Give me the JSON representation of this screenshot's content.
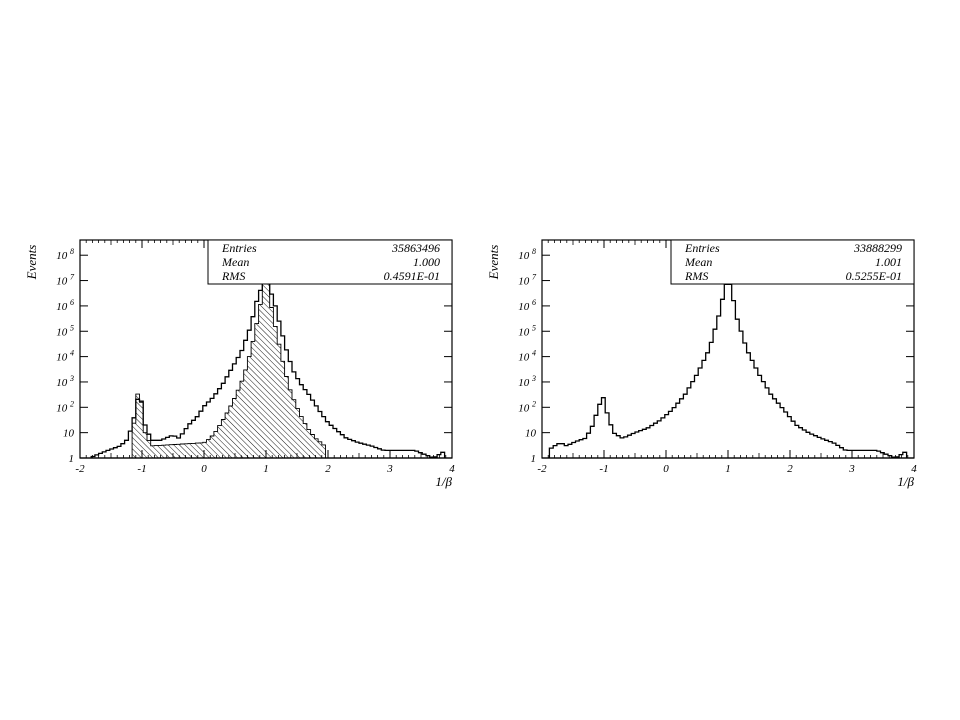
{
  "chart_data": [
    {
      "type": "histogram",
      "xlabel": "1/β",
      "ylabel": "Events",
      "xlim": [
        -2,
        4
      ],
      "ylim_log10": [
        0,
        8.6
      ],
      "log_y": true,
      "xticks": [
        "-2",
        "-1",
        "0",
        "1",
        "2",
        "3",
        "4"
      ],
      "yticks": [
        {
          "base": "1",
          "exp": ""
        },
        {
          "base": "10",
          "exp": ""
        },
        {
          "base": "10",
          "exp": "2"
        },
        {
          "base": "10",
          "exp": "3"
        },
        {
          "base": "10",
          "exp": "4"
        },
        {
          "base": "10",
          "exp": "5"
        },
        {
          "base": "10",
          "exp": "6"
        },
        {
          "base": "10",
          "exp": "7"
        },
        {
          "base": "10",
          "exp": "8"
        }
      ],
      "stats": {
        "entries_label": "Entries",
        "entries_value": "35863496",
        "mean_label": "Mean",
        "mean_value": "1.000",
        "rms_label": "RMS",
        "rms_value": "0.4591E-01"
      },
      "series": [
        {
          "style": "outline",
          "points": [
            [
              -1.85,
              1
            ],
            [
              -1.55,
              2
            ],
            [
              -1.35,
              3
            ],
            [
              -1.25,
              5
            ],
            [
              -1.15,
              20
            ],
            [
              -1.08,
              200
            ],
            [
              -1.02,
              250
            ],
            [
              -0.95,
              20
            ],
            [
              -0.85,
              5
            ],
            [
              -0.7,
              5
            ],
            [
              -0.5,
              8
            ],
            [
              -0.4,
              6
            ],
            [
              -0.25,
              20
            ],
            [
              -0.1,
              45
            ],
            [
              0.0,
              110
            ],
            [
              0.15,
              250
            ],
            [
              0.3,
              800
            ],
            [
              0.45,
              3500
            ],
            [
              0.6,
              15000
            ],
            [
              0.75,
              150000
            ],
            [
              0.85,
              1500000
            ],
            [
              0.95,
              8000000
            ],
            [
              1.0,
              10000000
            ],
            [
              1.05,
              6000000
            ],
            [
              1.15,
              1000000
            ],
            [
              1.25,
              100000
            ],
            [
              1.35,
              12000
            ],
            [
              1.45,
              2500
            ],
            [
              1.55,
              900
            ],
            [
              1.7,
              300
            ],
            [
              1.85,
              80
            ],
            [
              2.0,
              25
            ],
            [
              2.15,
              12
            ],
            [
              2.3,
              6
            ],
            [
              2.5,
              4
            ],
            [
              2.7,
              3
            ],
            [
              2.9,
              2
            ],
            [
              3.1,
              2
            ],
            [
              3.4,
              2
            ],
            [
              3.7,
              1
            ],
            [
              3.9,
              2
            ]
          ]
        },
        {
          "style": "hatched",
          "points": [
            [
              -1.15,
              8
            ],
            [
              -1.08,
              350
            ],
            [
              -1.02,
              250
            ],
            [
              -0.95,
              10
            ],
            [
              -0.85,
              3
            ],
            [
              0.0,
              4
            ],
            [
              0.1,
              6
            ],
            [
              0.2,
              12
            ],
            [
              0.3,
              30
            ],
            [
              0.4,
              80
            ],
            [
              0.5,
              250
            ],
            [
              0.6,
              900
            ],
            [
              0.7,
              5000
            ],
            [
              0.8,
              50000
            ],
            [
              0.9,
              800000
            ],
            [
              0.97,
              10000000
            ],
            [
              1.03,
              8000000
            ],
            [
              1.1,
              600000
            ],
            [
              1.2,
              40000
            ],
            [
              1.3,
              3000
            ],
            [
              1.4,
              400
            ],
            [
              1.5,
              100
            ],
            [
              1.6,
              30
            ],
            [
              1.7,
              12
            ],
            [
              1.8,
              6
            ],
            [
              1.95,
              3
            ]
          ]
        }
      ]
    },
    {
      "type": "histogram",
      "xlabel": "1/β",
      "ylabel": "Events",
      "xlim": [
        -2,
        4
      ],
      "ylim_log10": [
        0,
        8.6
      ],
      "log_y": true,
      "xticks": [
        "-2",
        "-1",
        "0",
        "1",
        "2",
        "3",
        "4"
      ],
      "yticks": [
        {
          "base": "1",
          "exp": ""
        },
        {
          "base": "10",
          "exp": ""
        },
        {
          "base": "10",
          "exp": "2"
        },
        {
          "base": "10",
          "exp": "3"
        },
        {
          "base": "10",
          "exp": "4"
        },
        {
          "base": "10",
          "exp": "5"
        },
        {
          "base": "10",
          "exp": "6"
        },
        {
          "base": "10",
          "exp": "7"
        },
        {
          "base": "10",
          "exp": "8"
        }
      ],
      "stats": {
        "entries_label": "Entries",
        "entries_value": "33888299",
        "mean_label": "Mean",
        "mean_value": "1.001",
        "rms_label": "RMS",
        "rms_value": "0.5255E-01"
      },
      "series": [
        {
          "style": "outline",
          "points": [
            [
              -1.9,
              2
            ],
            [
              -1.8,
              3
            ],
            [
              -1.7,
              4
            ],
            [
              -1.6,
              3
            ],
            [
              -1.5,
              4
            ],
            [
              -1.4,
              5
            ],
            [
              -1.3,
              6
            ],
            [
              -1.2,
              15
            ],
            [
              -1.1,
              80
            ],
            [
              -1.02,
              300
            ],
            [
              -0.95,
              60
            ],
            [
              -0.85,
              10
            ],
            [
              -0.7,
              6
            ],
            [
              -0.5,
              10
            ],
            [
              -0.3,
              15
            ],
            [
              -0.1,
              30
            ],
            [
              0.1,
              80
            ],
            [
              0.3,
              300
            ],
            [
              0.5,
              2000
            ],
            [
              0.7,
              20000
            ],
            [
              0.85,
              400000
            ],
            [
              0.95,
              5000000
            ],
            [
              1.0,
              12000000
            ],
            [
              1.05,
              5000000
            ],
            [
              1.15,
              300000
            ],
            [
              1.3,
              20000
            ],
            [
              1.5,
              2000
            ],
            [
              1.7,
              300
            ],
            [
              1.9,
              80
            ],
            [
              2.1,
              20
            ],
            [
              2.3,
              10
            ],
            [
              2.5,
              6
            ],
            [
              2.7,
              4
            ],
            [
              2.9,
              2
            ],
            [
              3.1,
              2
            ],
            [
              3.4,
              2
            ],
            [
              3.7,
              1
            ],
            [
              3.9,
              2
            ]
          ]
        }
      ]
    }
  ]
}
